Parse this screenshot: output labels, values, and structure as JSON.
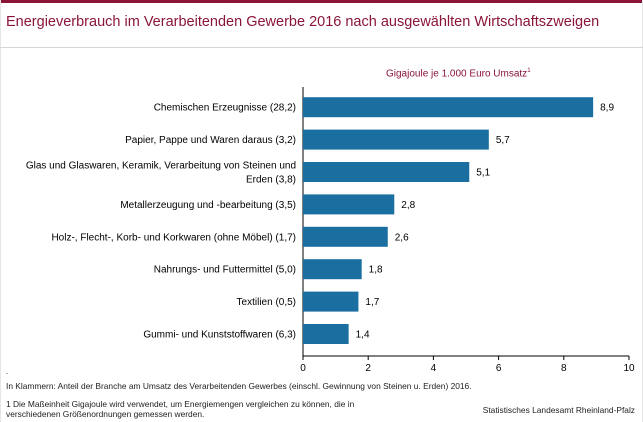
{
  "header": {
    "title": "Energieverbrauch im Verarbeitenden Gewerbe 2016 nach ausgewählten Wirtschaftszweigen"
  },
  "chart_data": {
    "type": "bar",
    "orientation": "horizontal",
    "unit_label": "Gigajoule je 1.000  Euro Umsatz",
    "unit_footnote": "1",
    "categories": [
      [
        "Chemischen Erzeugnisse (28,2)"
      ],
      [
        "Papier, Pappe und Waren daraus (3,2)"
      ],
      [
        "Glas und Glaswaren, Keramik, Verarbeitung von Steinen und",
        "Erden (3,8)"
      ],
      [
        "Metallerzeugung und -bearbeitung (3,5)"
      ],
      [
        "Holz-, Flecht-, Korb- und Korkwaren (ohne Möbel) (1,7)"
      ],
      [
        "Nahrungs- und Futtermittel (5,0)"
      ],
      [
        "Textilien (0,5)"
      ],
      [
        "Gummi- und Kunststoffwaren (6,3)"
      ]
    ],
    "values": [
      8.9,
      5.7,
      5.1,
      2.8,
      2.6,
      1.8,
      1.7,
      1.4
    ],
    "value_labels": [
      "8,9",
      "5,7",
      "5,1",
      "2,8",
      "2,6",
      "1,8",
      "1,7",
      "1,4"
    ],
    "xlim": [
      0,
      10
    ],
    "xticks": [
      0,
      2,
      4,
      6,
      8,
      10
    ],
    "xticklabels": [
      "0",
      "2",
      "4",
      "6",
      "8",
      "10"
    ],
    "bar_color": "#1a6fa0",
    "grid": false
  },
  "notes": {
    "dot": ".",
    "klammern": "In Klammern: Anteil der Branche am Umsatz des Verarbeitenden Gewerbes (einschl. Gewinnung von Steinen u. Erden) 2016.",
    "footnote_line1": "1 Die Maßeinheit Gigajoule wird verwendet, um Energiemengen vergleichen zu können, die in",
    "footnote_line2": "verschiedenen Größenordnungen gemessen werden.",
    "source": "Statistisches Landesamt Rheinland-Pfalz"
  },
  "colors": {
    "accent": "#8a1538",
    "bar": "#1a6fa0"
  }
}
